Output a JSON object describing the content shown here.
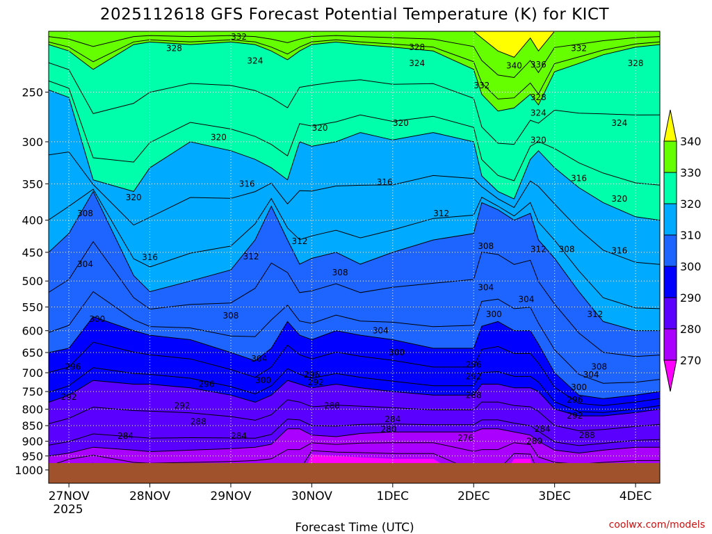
{
  "colors": {
    "c270": "#ff00ff",
    "c280": "#aa00ff",
    "c290": "#5a00ff",
    "c300": "#0000ff",
    "c310": "#1e64ff",
    "c320": "#00aaff",
    "c330": "#00ffaa",
    "c340": "#66ff00",
    "c350": "#ffff00",
    "ground": "#a0522d",
    "grid": "#ffffff"
  },
  "chart_data": {
    "type": "heatmap",
    "title": "2025112618 GFS Forecast Potential Temperature (K) for KICT",
    "xlabel": "Forecast Time (UTC)",
    "ylabel": "",
    "x_ticks": [
      "27NOV",
      "28NOV",
      "29NOV",
      "30NOV",
      "1DEC",
      "2DEC",
      "3DEC",
      "4DEC"
    ],
    "x_year": "2025",
    "x_range": [
      -0.25,
      7.3
    ],
    "y_scale": "log-pressure",
    "y_range": [
      200,
      1050
    ],
    "y_ticks": [
      250,
      300,
      350,
      400,
      450,
      500,
      550,
      600,
      650,
      700,
      750,
      800,
      850,
      900,
      950,
      1000
    ],
    "colorbar": {
      "levels": [
        270,
        280,
        290,
        300,
        310,
        320,
        330,
        340
      ],
      "extend": "both",
      "orientation": "vertical",
      "location": "right"
    },
    "contour_interval": 4,
    "band_boundaries": {
      "t": [
        -0.25,
        0.0,
        0.3,
        0.8,
        1.0,
        1.5,
        2.0,
        2.3,
        2.5,
        2.7,
        2.85,
        3.0,
        3.3,
        3.6,
        4.0,
        4.5,
        5.0,
        5.1,
        5.3,
        5.5,
        5.7,
        5.8,
        6.0,
        6.3,
        6.6,
        7.0,
        7.3
      ],
      "t340": [
        200,
        200,
        200,
        200,
        200,
        200,
        200,
        200,
        200,
        200,
        200,
        200,
        200,
        200,
        200,
        200,
        200,
        205,
        215,
        220,
        205,
        215,
        200,
        200,
        200,
        200,
        200
      ],
      "t330": [
        210,
        215,
        230,
        210,
        208,
        210,
        208,
        210,
        215,
        222,
        215,
        210,
        208,
        210,
        212,
        215,
        230,
        252,
        268,
        265,
        252,
        262,
        232,
        225,
        218,
        212,
        210
      ],
      "t320": [
        248,
        255,
        345,
        360,
        330,
        300,
        310,
        320,
        330,
        345,
        300,
        305,
        300,
        290,
        298,
        290,
        300,
        340,
        360,
        370,
        320,
        310,
        330,
        355,
        375,
        395,
        400
      ],
      "t310": [
        450,
        420,
        360,
        490,
        520,
        500,
        480,
        430,
        380,
        430,
        470,
        460,
        450,
        470,
        450,
        430,
        420,
        375,
        385,
        400,
        390,
        430,
        460,
        520,
        580,
        600,
        600
      ],
      "t300": [
        650,
        640,
        570,
        600,
        610,
        620,
        650,
        670,
        640,
        580,
        610,
        620,
        600,
        610,
        620,
        640,
        640,
        590,
        580,
        600,
        600,
        630,
        700,
        760,
        770,
        760,
        750
      ],
      "t290": [
        780,
        760,
        720,
        730,
        730,
        740,
        760,
        780,
        760,
        720,
        730,
        740,
        730,
        740,
        750,
        760,
        760,
        730,
        730,
        740,
        740,
        750,
        800,
        820,
        820,
        810,
        800
      ],
      "t280": [
        950,
        940,
        920,
        930,
        935,
        930,
        925,
        920,
        910,
        860,
        860,
        880,
        885,
        875,
        870,
        870,
        870,
        860,
        860,
        870,
        880,
        900,
        930,
        940,
        930,
        920,
        920
      ],
      "t270": [
        1050,
        995,
        990,
        1050,
        1050,
        1050,
        1050,
        1050,
        1050,
        1050,
        1050,
        945,
        950,
        955,
        960,
        960,
        1050,
        1050,
        1050,
        960,
        960,
        1050,
        1050,
        1050,
        1050,
        1050,
        1050
      ],
      "surface_pressure": 975
    },
    "contour_labels": [
      {
        "t": 2.1,
        "p": 204,
        "v": "332"
      },
      {
        "t": 1.3,
        "p": 213,
        "v": "328"
      },
      {
        "t": 2.3,
        "p": 223,
        "v": "324"
      },
      {
        "t": 4.3,
        "p": 212,
        "v": "328"
      },
      {
        "t": 4.3,
        "p": 225,
        "v": "324"
      },
      {
        "t": 5.1,
        "p": 244,
        "v": "332"
      },
      {
        "t": 5.5,
        "p": 227,
        "v": "340"
      },
      {
        "t": 5.8,
        "p": 226,
        "v": "336"
      },
      {
        "t": 5.8,
        "p": 255,
        "v": "328"
      },
      {
        "t": 5.8,
        "p": 270,
        "v": "324"
      },
      {
        "t": 6.3,
        "p": 213,
        "v": "332"
      },
      {
        "t": 7.0,
        "p": 225,
        "v": "328"
      },
      {
        "t": 6.8,
        "p": 280,
        "v": "324"
      },
      {
        "t": 1.85,
        "p": 295,
        "v": "320"
      },
      {
        "t": 3.1,
        "p": 285,
        "v": "320"
      },
      {
        "t": 4.1,
        "p": 280,
        "v": "320"
      },
      {
        "t": 5.8,
        "p": 298,
        "v": "320"
      },
      {
        "t": 0.8,
        "p": 368,
        "v": "320"
      },
      {
        "t": 6.8,
        "p": 370,
        "v": "320"
      },
      {
        "t": 2.2,
        "p": 350,
        "v": "316"
      },
      {
        "t": 3.9,
        "p": 348,
        "v": "316"
      },
      {
        "t": 6.3,
        "p": 343,
        "v": "316"
      },
      {
        "t": 4.6,
        "p": 390,
        "v": "312"
      },
      {
        "t": 2.85,
        "p": 432,
        "v": "312"
      },
      {
        "t": 0.2,
        "p": 390,
        "v": "308"
      },
      {
        "t": 1.0,
        "p": 458,
        "v": "316"
      },
      {
        "t": 2.25,
        "p": 457,
        "v": "312"
      },
      {
        "t": 6.8,
        "p": 447,
        "v": "316"
      },
      {
        "t": 5.8,
        "p": 445,
        "v": "312"
      },
      {
        "t": 6.15,
        "p": 445,
        "v": "308"
      },
      {
        "t": 5.15,
        "p": 440,
        "v": "308"
      },
      {
        "t": 3.35,
        "p": 485,
        "v": "308"
      },
      {
        "t": 0.2,
        "p": 470,
        "v": "304"
      },
      {
        "t": 5.15,
        "p": 512,
        "v": "304"
      },
      {
        "t": 5.65,
        "p": 535,
        "v": "304"
      },
      {
        "t": 6.5,
        "p": 565,
        "v": "312"
      },
      {
        "t": 2.0,
        "p": 568,
        "v": "308"
      },
      {
        "t": 0.35,
        "p": 575,
        "v": "300"
      },
      {
        "t": 3.85,
        "p": 600,
        "v": "304"
      },
      {
        "t": 5.25,
        "p": 565,
        "v": "300"
      },
      {
        "t": 4.05,
        "p": 650,
        "v": "300"
      },
      {
        "t": 2.35,
        "p": 665,
        "v": "304"
      },
      {
        "t": 0.05,
        "p": 685,
        "v": "296"
      },
      {
        "t": 5.0,
        "p": 680,
        "v": "296"
      },
      {
        "t": 6.55,
        "p": 685,
        "v": "308"
      },
      {
        "t": 6.45,
        "p": 705,
        "v": "304"
      },
      {
        "t": 5.0,
        "p": 710,
        "v": "292"
      },
      {
        "t": 3.0,
        "p": 705,
        "v": "296"
      },
      {
        "t": 2.4,
        "p": 720,
        "v": "300"
      },
      {
        "t": 1.7,
        "p": 730,
        "v": "296"
      },
      {
        "t": 3.05,
        "p": 725,
        "v": "292"
      },
      {
        "t": 6.3,
        "p": 738,
        "v": "300"
      },
      {
        "t": 0.0,
        "p": 765,
        "v": "292"
      },
      {
        "t": 5.0,
        "p": 760,
        "v": "288"
      },
      {
        "t": 6.25,
        "p": 773,
        "v": "296"
      },
      {
        "t": 1.4,
        "p": 790,
        "v": "292"
      },
      {
        "t": 3.25,
        "p": 790,
        "v": "288"
      },
      {
        "t": 6.25,
        "p": 820,
        "v": "292"
      },
      {
        "t": 4.0,
        "p": 830,
        "v": "284"
      },
      {
        "t": 1.6,
        "p": 838,
        "v": "288"
      },
      {
        "t": 3.95,
        "p": 862,
        "v": "280"
      },
      {
        "t": 5.85,
        "p": 860,
        "v": "284"
      },
      {
        "t": 6.4,
        "p": 880,
        "v": "288"
      },
      {
        "t": 0.7,
        "p": 883,
        "v": "284"
      },
      {
        "t": 2.1,
        "p": 883,
        "v": "284"
      },
      {
        "t": 4.9,
        "p": 890,
        "v": "276"
      },
      {
        "t": 5.75,
        "p": 900,
        "v": "280"
      }
    ]
  },
  "credit": "coolwx.com/models"
}
